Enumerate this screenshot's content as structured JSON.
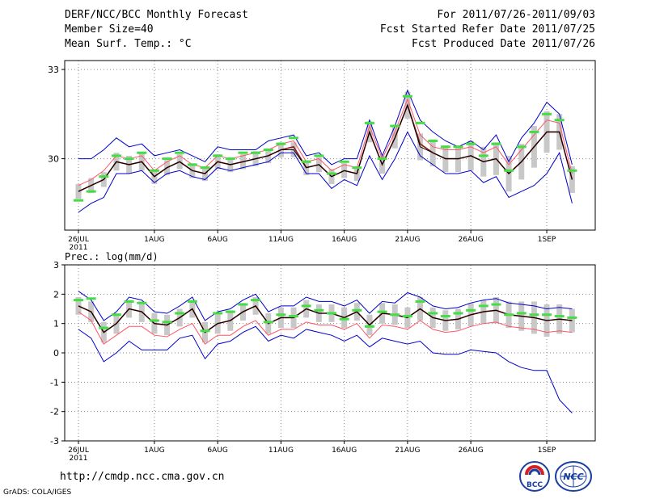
{
  "header": {
    "title": "DERF/NCC/BCC Monthly Forecast",
    "member_size": "Member Size=40",
    "variable": "Mean Surf. Temp.: °C",
    "period": "For 2011/07/26-2011/09/03",
    "started": "Fcst Started Refer Date 2011/07/25",
    "produced": "Fcst Produced Date 2011/07/26"
  },
  "footer": {
    "url": "http://cmdp.ncc.cma.gov.cn",
    "credit": "GrADS: COLA/IGES"
  },
  "logos": {
    "bcc": "BCC",
    "ncc": "NCC"
  },
  "colors": {
    "mean": "#000000",
    "median": "#8b1a1a",
    "pct_low": "#ff5566",
    "bounds": "#0000cc",
    "box": "#c8c8c8",
    "obs": "#44dd44",
    "grid": "#888888"
  },
  "chart_data": [
    {
      "type": "line",
      "panel": "temperature",
      "title": "",
      "ylim": [
        27.6,
        33.3
      ],
      "yticks": [
        "33",
        "30"
      ],
      "ytick_values": [
        33,
        30
      ],
      "xticks": [
        "26JUL",
        "1AUG",
        "6AUG",
        "11AUG",
        "16AUG",
        "21AUG",
        "26AUG",
        "1SEP"
      ],
      "xtick_days": [
        0,
        6,
        11,
        16,
        21,
        26,
        31,
        37
      ],
      "year_label": "2011",
      "series": [
        {
          "name": "ensemble-mean",
          "values": [
            28.9,
            29.1,
            29.3,
            29.9,
            29.8,
            29.9,
            29.4,
            29.7,
            29.9,
            29.6,
            29.5,
            29.9,
            29.8,
            29.9,
            30.0,
            30.1,
            30.3,
            30.3,
            29.7,
            29.8,
            29.4,
            29.6,
            29.5,
            30.9,
            29.8,
            30.7,
            31.8,
            30.4,
            30.2,
            30.0,
            30.0,
            30.1,
            29.9,
            30.0,
            29.5,
            29.9,
            30.4,
            30.9,
            30.9,
            29.3
          ]
        },
        {
          "name": "median",
          "values": [
            28.9,
            29.1,
            29.3,
            29.9,
            29.8,
            29.9,
            29.4,
            29.7,
            29.9,
            29.6,
            29.5,
            29.9,
            29.8,
            29.9,
            30.0,
            30.1,
            30.3,
            30.4,
            29.7,
            29.8,
            29.4,
            29.6,
            29.5,
            30.9,
            29.8,
            30.7,
            31.8,
            30.5,
            30.2,
            30.0,
            30.0,
            30.1,
            29.9,
            30.0,
            29.5,
            29.9,
            30.4,
            30.9,
            30.9,
            29.3
          ]
        },
        {
          "name": "pct-90",
          "values": [
            29.1,
            29.3,
            29.6,
            30.1,
            30.0,
            30.1,
            29.6,
            29.9,
            30.1,
            29.8,
            29.7,
            30.1,
            30.0,
            30.1,
            30.2,
            30.3,
            30.5,
            30.6,
            29.9,
            30.0,
            29.6,
            29.8,
            29.7,
            31.1,
            30.0,
            30.9,
            32.0,
            30.8,
            30.4,
            30.3,
            30.3,
            30.4,
            30.2,
            30.4,
            29.8,
            30.3,
            30.8,
            31.3,
            31.2,
            29.5
          ]
        },
        {
          "name": "max",
          "values": [
            30.0,
            30.0,
            30.3,
            30.7,
            30.4,
            30.5,
            30.1,
            30.2,
            30.3,
            30.1,
            29.9,
            30.4,
            30.3,
            30.3,
            30.3,
            30.6,
            30.7,
            30.8,
            30.1,
            30.2,
            29.8,
            30.0,
            30.0,
            31.3,
            30.1,
            31.1,
            32.3,
            31.3,
            30.9,
            30.6,
            30.4,
            30.6,
            30.3,
            30.8,
            29.9,
            30.7,
            31.2,
            31.9,
            31.5,
            29.8
          ]
        },
        {
          "name": "min",
          "values": [
            28.2,
            28.5,
            28.7,
            29.5,
            29.5,
            29.6,
            29.2,
            29.5,
            29.6,
            29.4,
            29.3,
            29.7,
            29.6,
            29.7,
            29.8,
            29.9,
            30.2,
            30.2,
            29.5,
            29.5,
            29.0,
            29.3,
            29.1,
            30.1,
            29.3,
            30.0,
            30.9,
            30.1,
            29.8,
            29.5,
            29.5,
            29.6,
            29.2,
            29.4,
            28.7,
            28.9,
            29.1,
            29.5,
            30.2,
            28.5
          ]
        },
        {
          "name": "observed",
          "values": [
            28.6,
            28.9,
            29.4,
            30.1,
            30.0,
            30.2,
            29.6,
            30.0,
            30.2,
            29.8,
            29.7,
            30.1,
            30.0,
            30.2,
            30.2,
            30.3,
            30.5,
            30.7,
            29.9,
            30.1,
            29.5,
            29.9,
            29.7,
            31.2,
            30.0,
            31.1,
            32.1,
            31.2,
            30.6,
            30.4,
            30.4,
            30.5,
            30.1,
            30.5,
            29.6,
            30.4,
            30.9,
            31.5,
            31.3,
            29.6
          ]
        }
      ],
      "box_spread": [
        0.25,
        0.25,
        0.25,
        0.3,
        0.3,
        0.3,
        0.25,
        0.25,
        0.25,
        0.25,
        0.25,
        0.25,
        0.25,
        0.25,
        0.25,
        0.25,
        0.25,
        0.25,
        0.25,
        0.25,
        0.25,
        0.25,
        0.25,
        0.35,
        0.3,
        0.35,
        0.45,
        0.45,
        0.45,
        0.45,
        0.45,
        0.5,
        0.5,
        0.55,
        0.6,
        0.6,
        0.7,
        0.7,
        0.6,
        0.45
      ]
    },
    {
      "type": "line",
      "panel": "precipitation",
      "title": "Prec.: log(mm/d)",
      "ylim": [
        -3,
        3
      ],
      "yticks": [
        "3",
        "2",
        "1",
        "0",
        "-1",
        "-2",
        "-3"
      ],
      "ytick_values": [
        3,
        2,
        1,
        0,
        -1,
        -2,
        -3
      ],
      "xticks": [
        "26JUL",
        "1AUG",
        "6AUG",
        "11AUG",
        "16AUG",
        "21AUG",
        "26AUG",
        "1SEP"
      ],
      "xtick_days": [
        0,
        6,
        11,
        16,
        21,
        26,
        31,
        37
      ],
      "year_label": "2011",
      "series": [
        {
          "name": "ensemble-mean",
          "values": [
            1.6,
            1.4,
            0.7,
            1.0,
            1.5,
            1.4,
            1.0,
            0.95,
            1.2,
            1.5,
            0.7,
            1.0,
            1.1,
            1.4,
            1.6,
            1.0,
            1.2,
            1.2,
            1.5,
            1.35,
            1.35,
            1.2,
            1.4,
            0.95,
            1.35,
            1.3,
            1.2,
            1.5,
            1.2,
            1.1,
            1.15,
            1.3,
            1.4,
            1.45,
            1.3,
            1.25,
            1.2,
            1.1,
            1.15,
            1.1
          ]
        },
        {
          "name": "median",
          "values": [
            1.6,
            1.4,
            0.7,
            1.0,
            1.5,
            1.4,
            1.0,
            0.95,
            1.2,
            1.5,
            0.7,
            1.0,
            1.1,
            1.4,
            1.6,
            1.0,
            1.2,
            1.2,
            1.5,
            1.35,
            1.35,
            1.2,
            1.4,
            0.95,
            1.35,
            1.3,
            1.2,
            1.5,
            1.2,
            1.1,
            1.15,
            1.3,
            1.4,
            1.45,
            1.3,
            1.25,
            1.2,
            1.1,
            1.15,
            1.1
          ]
        },
        {
          "name": "pct-10",
          "values": [
            1.4,
            1.1,
            0.3,
            0.6,
            0.9,
            0.9,
            0.6,
            0.55,
            0.8,
            1.0,
            0.3,
            0.6,
            0.6,
            0.9,
            1.1,
            0.6,
            0.8,
            0.8,
            1.05,
            0.95,
            0.95,
            0.8,
            1.0,
            0.5,
            0.95,
            0.9,
            0.8,
            1.1,
            0.8,
            0.7,
            0.75,
            0.9,
            1.0,
            1.05,
            0.9,
            0.85,
            0.8,
            0.7,
            0.75,
            0.7
          ]
        },
        {
          "name": "max",
          "values": [
            2.1,
            1.8,
            1.1,
            1.4,
            1.9,
            1.8,
            1.4,
            1.35,
            1.6,
            1.9,
            1.1,
            1.4,
            1.5,
            1.8,
            2.0,
            1.4,
            1.6,
            1.6,
            1.9,
            1.75,
            1.75,
            1.6,
            1.8,
            1.35,
            1.75,
            1.7,
            2.05,
            1.9,
            1.6,
            1.5,
            1.55,
            1.7,
            1.8,
            1.85,
            1.7,
            1.65,
            1.6,
            1.5,
            1.55,
            1.5
          ]
        },
        {
          "name": "min",
          "values": [
            0.8,
            0.5,
            -0.3,
            0.0,
            0.4,
            0.1,
            0.1,
            0.1,
            0.5,
            0.6,
            -0.2,
            0.3,
            0.4,
            0.7,
            0.9,
            0.4,
            0.6,
            0.5,
            0.8,
            0.7,
            0.6,
            0.4,
            0.6,
            0.2,
            0.5,
            0.4,
            0.3,
            0.4,
            0.0,
            -0.05,
            -0.05,
            0.1,
            0.05,
            0.0,
            -0.3,
            -0.5,
            -0.6,
            -0.6,
            -1.6,
            -2.05
          ]
        },
        {
          "name": "observed",
          "values": [
            1.8,
            1.85,
            0.85,
            1.3,
            1.75,
            1.7,
            1.1,
            1.05,
            1.35,
            1.75,
            0.75,
            1.35,
            1.4,
            1.65,
            1.8,
            1.05,
            1.3,
            1.25,
            1.6,
            1.45,
            1.35,
            1.15,
            1.45,
            0.9,
            1.4,
            1.3,
            1.25,
            1.75,
            1.35,
            1.25,
            1.35,
            1.45,
            1.6,
            1.65,
            1.3,
            1.35,
            1.3,
            1.3,
            1.25,
            1.2
          ]
        }
      ],
      "box_spread": [
        0.3,
        0.35,
        0.35,
        0.35,
        0.3,
        0.35,
        0.35,
        0.35,
        0.3,
        0.3,
        0.35,
        0.35,
        0.35,
        0.3,
        0.3,
        0.35,
        0.35,
        0.35,
        0.3,
        0.3,
        0.3,
        0.35,
        0.3,
        0.35,
        0.35,
        0.35,
        0.35,
        0.4,
        0.35,
        0.35,
        0.35,
        0.4,
        0.4,
        0.45,
        0.45,
        0.5,
        0.55,
        0.55,
        0.5,
        0.4
      ]
    }
  ]
}
